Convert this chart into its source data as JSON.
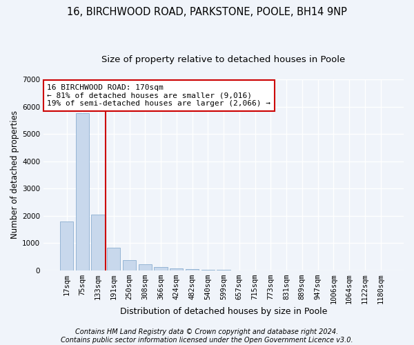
{
  "title1": "16, BIRCHWOOD ROAD, PARKSTONE, POOLE, BH14 9NP",
  "title2": "Size of property relative to detached houses in Poole",
  "xlabel": "Distribution of detached houses by size in Poole",
  "ylabel": "Number of detached properties",
  "bar_labels": [
    "17sqm",
    "75sqm",
    "133sqm",
    "191sqm",
    "250sqm",
    "308sqm",
    "366sqm",
    "424sqm",
    "482sqm",
    "540sqm",
    "599sqm",
    "657sqm",
    "715sqm",
    "773sqm",
    "831sqm",
    "889sqm",
    "947sqm",
    "1006sqm",
    "1064sqm",
    "1122sqm",
    "1180sqm"
  ],
  "bar_values": [
    1800,
    5750,
    2050,
    820,
    380,
    230,
    130,
    80,
    50,
    20,
    10,
    5,
    3,
    0,
    0,
    0,
    0,
    0,
    0,
    0,
    0
  ],
  "bar_color": "#c8d8ec",
  "bar_edge_color": "#8aaed0",
  "vline_position": 2.5,
  "vline_color": "#cc0000",
  "annotation_text": "16 BIRCHWOOD ROAD: 170sqm\n← 81% of detached houses are smaller (9,016)\n19% of semi-detached houses are larger (2,066) →",
  "annotation_box_color": "#ffffff",
  "annotation_box_edge": "#cc0000",
  "ylim": [
    0,
    7000
  ],
  "yticks": [
    0,
    1000,
    2000,
    3000,
    4000,
    5000,
    6000,
    7000
  ],
  "footer1": "Contains HM Land Registry data © Crown copyright and database right 2024.",
  "footer2": "Contains public sector information licensed under the Open Government Licence v3.0.",
  "bg_color": "#f0f4fa",
  "plot_bg_color": "#f0f4fa",
  "grid_color": "#ffffff",
  "title1_fontsize": 10.5,
  "title2_fontsize": 9.5,
  "xlabel_fontsize": 9,
  "ylabel_fontsize": 8.5,
  "tick_fontsize": 7.5,
  "annotation_fontsize": 8,
  "footer_fontsize": 7
}
